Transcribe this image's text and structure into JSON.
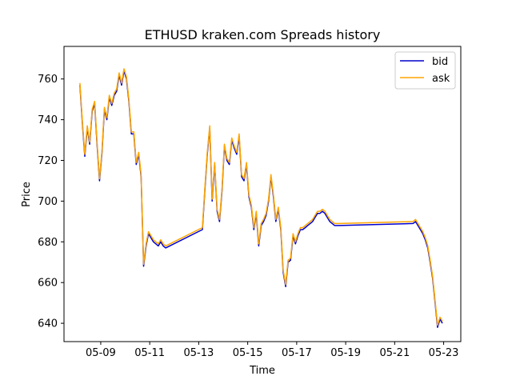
{
  "chart_data": {
    "type": "line",
    "title": "ETHUSD kraken.com Spreads history",
    "xlabel": "Time",
    "ylabel": "Price",
    "x_ticks": [
      "05-09",
      "05-11",
      "05-13",
      "05-15",
      "05-17",
      "05-19",
      "05-21",
      "05-23"
    ],
    "x_tick_values": [
      9,
      11,
      13,
      15,
      17,
      19,
      21,
      23
    ],
    "xlim": [
      7.5,
      23.7
    ],
    "y_ticks": [
      640,
      660,
      680,
      700,
      720,
      740,
      760
    ],
    "ylim": [
      631,
      776
    ],
    "legend_position": "top-right",
    "grid": false,
    "series": [
      {
        "name": "bid",
        "color": "#0000cc",
        "x": [
          8.15,
          8.25,
          8.35,
          8.45,
          8.55,
          8.65,
          8.75,
          8.85,
          8.95,
          9.05,
          9.15,
          9.25,
          9.35,
          9.45,
          9.55,
          9.65,
          9.75,
          9.85,
          9.95,
          10.05,
          10.15,
          10.25,
          10.35,
          10.45,
          10.55,
          10.65,
          10.75,
          10.85,
          10.95,
          11.05,
          11.15,
          11.25,
          11.35,
          11.45,
          11.55,
          11.65,
          13.15,
          13.25,
          13.35,
          13.45,
          13.55,
          13.65,
          13.75,
          13.85,
          13.95,
          14.05,
          14.15,
          14.25,
          14.35,
          14.45,
          14.55,
          14.65,
          14.75,
          14.85,
          14.95,
          15.05,
          15.15,
          15.25,
          15.35,
          15.45,
          15.55,
          15.65,
          15.75,
          15.85,
          15.95,
          16.05,
          16.15,
          16.25,
          16.35,
          16.45,
          16.55,
          16.65,
          16.75,
          16.85,
          16.95,
          17.05,
          17.15,
          17.25,
          17.35,
          17.45,
          17.55,
          17.65,
          17.75,
          17.85,
          17.95,
          18.05,
          18.15,
          18.25,
          18.35,
          18.45,
          18.55,
          18.65,
          18.75,
          21.75,
          21.85,
          21.95,
          22.05,
          22.15,
          22.25,
          22.35,
          22.45,
          22.55,
          22.65,
          22.75,
          22.85,
          22.95
        ],
        "y": [
          757,
          738,
          722,
          736,
          728,
          744,
          748,
          728,
          710,
          724,
          745,
          740,
          751,
          747,
          752,
          754,
          762,
          757,
          764,
          760,
          749,
          733,
          733,
          718,
          723,
          712,
          668,
          678,
          684,
          682,
          680,
          679,
          678,
          680,
          678,
          677,
          686,
          705,
          723,
          736,
          700,
          718,
          695,
          690,
          705,
          727,
          720,
          718,
          730,
          726,
          723,
          732,
          712,
          710,
          718,
          702,
          697,
          686,
          694,
          678,
          688,
          690,
          693,
          700,
          712,
          702,
          690,
          696,
          686,
          665,
          658,
          670,
          671,
          683,
          679,
          683,
          686,
          686,
          687,
          688,
          689,
          690,
          692,
          694,
          694,
          695,
          694,
          692,
          690,
          689,
          688,
          688,
          688,
          689,
          690,
          688,
          686,
          684,
          681,
          677,
          670,
          662,
          650,
          638,
          642,
          640
        ]
      },
      {
        "name": "ask",
        "color": "#ffa500",
        "x": [
          8.15,
          8.25,
          8.35,
          8.45,
          8.55,
          8.65,
          8.75,
          8.85,
          8.95,
          9.05,
          9.15,
          9.25,
          9.35,
          9.45,
          9.55,
          9.65,
          9.75,
          9.85,
          9.95,
          10.05,
          10.15,
          10.25,
          10.35,
          10.45,
          10.55,
          10.65,
          10.75,
          10.85,
          10.95,
          11.05,
          11.15,
          11.25,
          11.35,
          11.45,
          11.55,
          11.65,
          13.15,
          13.25,
          13.35,
          13.45,
          13.55,
          13.65,
          13.75,
          13.85,
          13.95,
          14.05,
          14.15,
          14.25,
          14.35,
          14.45,
          14.55,
          14.65,
          14.75,
          14.85,
          14.95,
          15.05,
          15.15,
          15.25,
          15.35,
          15.45,
          15.55,
          15.65,
          15.75,
          15.85,
          15.95,
          16.05,
          16.15,
          16.25,
          16.35,
          16.45,
          16.55,
          16.65,
          16.75,
          16.85,
          16.95,
          17.05,
          17.15,
          17.25,
          17.35,
          17.45,
          17.55,
          17.65,
          17.75,
          17.85,
          17.95,
          18.05,
          18.15,
          18.25,
          18.35,
          18.45,
          18.55,
          18.65,
          18.75,
          21.75,
          21.85,
          21.95,
          22.05,
          22.15,
          22.25,
          22.35,
          22.45,
          22.55,
          22.65,
          22.75,
          22.85,
          22.95
        ],
        "y": [
          758,
          739,
          723,
          737,
          729,
          745,
          749,
          729,
          711,
          725,
          746,
          741,
          752,
          748,
          753,
          755,
          763,
          758,
          765,
          761,
          750,
          734,
          734,
          719,
          724,
          713,
          669,
          679,
          685,
          683,
          681,
          680,
          679,
          681,
          679,
          678,
          687,
          706,
          724,
          737,
          701,
          719,
          696,
          691,
          706,
          728,
          721,
          719,
          731,
          727,
          724,
          733,
          713,
          711,
          719,
          703,
          698,
          687,
          695,
          679,
          689,
          691,
          694,
          701,
          713,
          703,
          691,
          697,
          687,
          666,
          659,
          671,
          672,
          684,
          680,
          684,
          687,
          687,
          688,
          689,
          690,
          691,
          693,
          695,
          695,
          696,
          695,
          693,
          691,
          690,
          689,
          689,
          689,
          690,
          691,
          689,
          687,
          685,
          682,
          678,
          671,
          663,
          651,
          639,
          643,
          641
        ]
      }
    ]
  }
}
